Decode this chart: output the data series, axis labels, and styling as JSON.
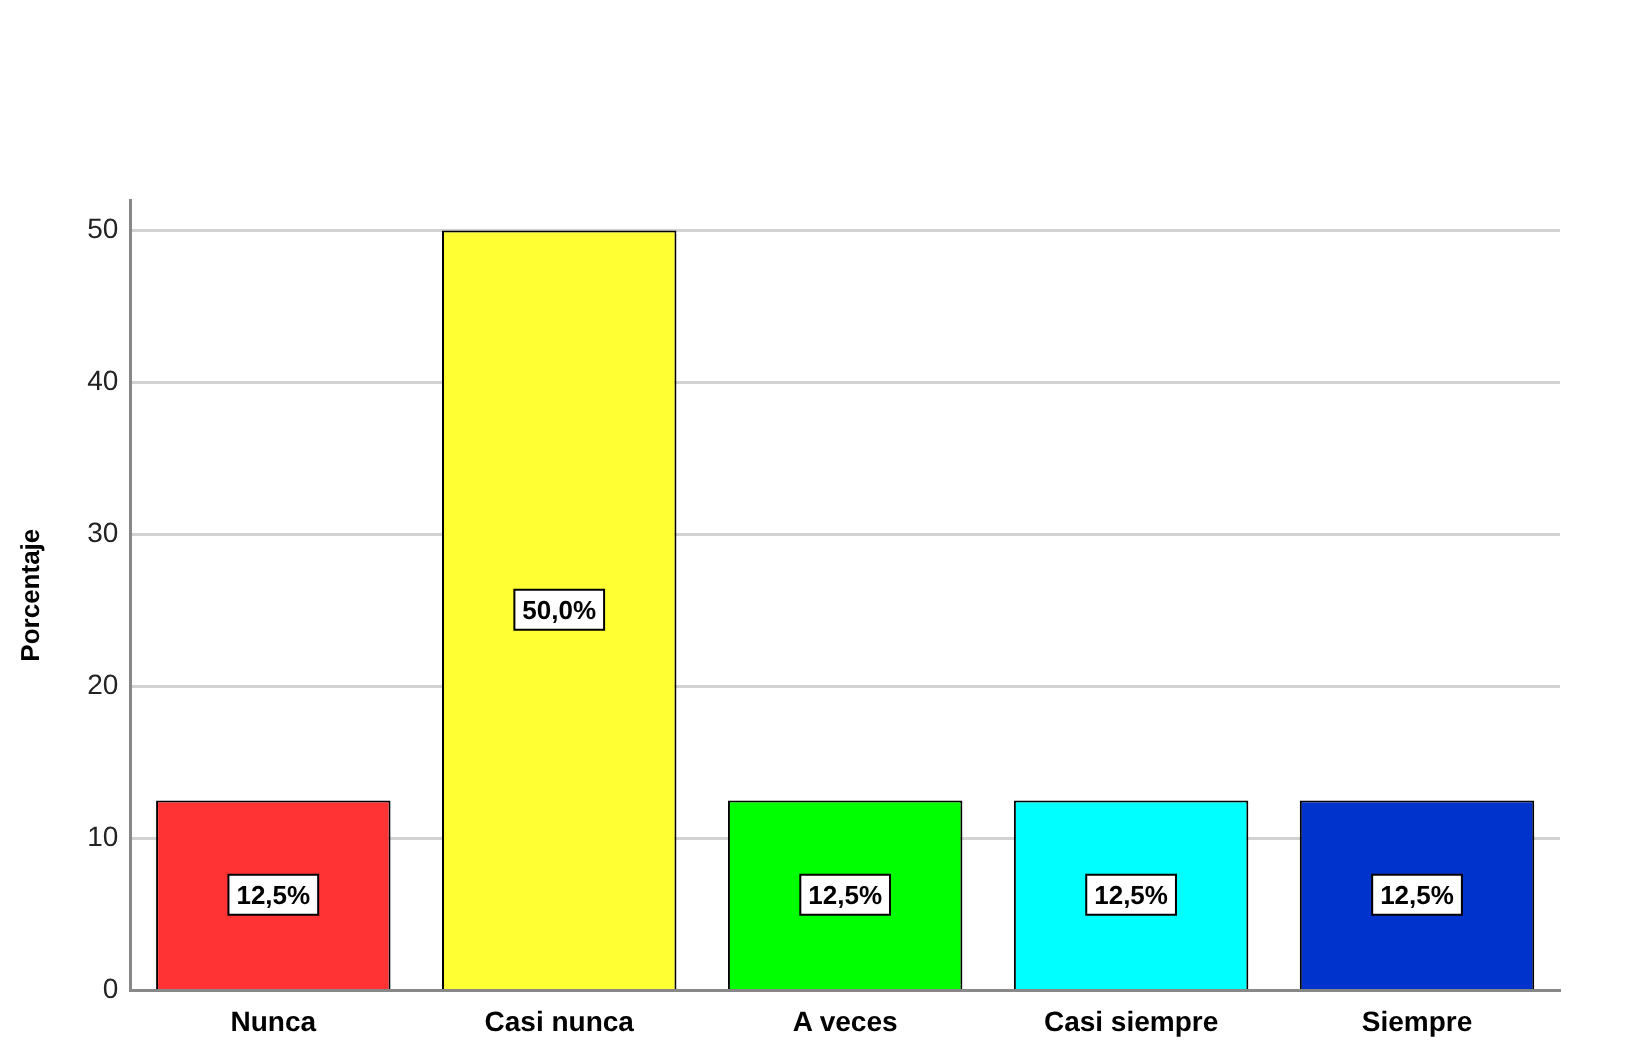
{
  "chart_data": {
    "type": "bar",
    "ylabel": "Porcentaje",
    "categories": [
      "Nunca",
      "Casi nunca",
      "A veces",
      "Casi siempre",
      "Siempre"
    ],
    "values": [
      12.5,
      50.0,
      12.5,
      12.5,
      12.5
    ],
    "colors": [
      "#ff3333",
      "#ffff33",
      "#00ff00",
      "#00ffff",
      "#0033cc"
    ],
    "value_labels": [
      "12,5%",
      "50,0%",
      "12,5%",
      "12,5%",
      "12,5%"
    ],
    "ylim": [
      0,
      52
    ],
    "yticks": [
      0,
      10,
      20,
      30,
      40,
      50
    ],
    "grid": "y"
  }
}
